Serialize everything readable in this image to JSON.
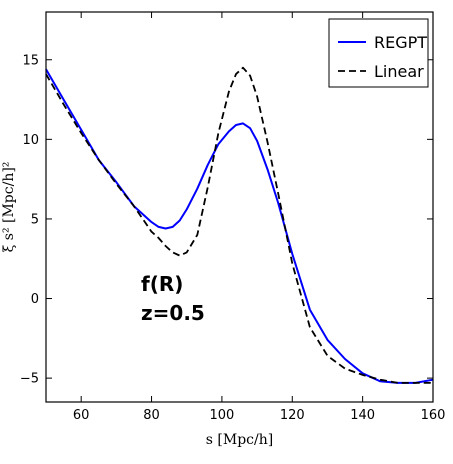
{
  "chart_data": {
    "type": "line",
    "xlabel": "s [Mpc/h]",
    "ylabel": "ξ s² [Mpc/h]²",
    "xlim": [
      50,
      160
    ],
    "ylim": [
      -6.5,
      18
    ],
    "xticks": [
      60,
      80,
      100,
      120,
      140,
      160
    ],
    "yticks": [
      -5,
      0,
      5,
      10,
      15
    ],
    "grid": false,
    "legend_position": "top-right",
    "annotations": [
      "f(R)",
      "z=0.5"
    ],
    "series": [
      {
        "name": "REGPT",
        "style": "solid",
        "color": "#0000ff",
        "x": [
          50,
          55,
          60,
          65,
          70,
          75,
          80,
          82,
          84,
          86,
          88,
          90,
          93,
          96,
          99,
          102,
          104,
          106,
          108,
          110,
          113,
          116,
          120,
          125,
          130,
          135,
          140,
          145,
          150,
          152,
          155,
          160
        ],
        "y": [
          14.4,
          12.5,
          10.6,
          8.7,
          7.3,
          5.8,
          4.8,
          4.5,
          4.4,
          4.5,
          4.9,
          5.6,
          6.9,
          8.4,
          9.7,
          10.5,
          10.9,
          11.0,
          10.7,
          9.9,
          8.1,
          6.0,
          2.8,
          -0.7,
          -2.6,
          -3.8,
          -4.7,
          -5.2,
          -5.3,
          -5.3,
          -5.3,
          -5.1
        ]
      },
      {
        "name": "Linear",
        "style": "dashed",
        "color": "#000000",
        "x": [
          50,
          55,
          60,
          65,
          70,
          75,
          80,
          82,
          84,
          86,
          88,
          90,
          93,
          96,
          99,
          102,
          104,
          106,
          108,
          110,
          113,
          116,
          120,
          125,
          130,
          135,
          140,
          145,
          150,
          152,
          155,
          160
        ],
        "y": [
          14.1,
          12.2,
          10.4,
          8.7,
          7.2,
          5.8,
          4.2,
          3.8,
          3.3,
          2.9,
          2.7,
          2.9,
          4.0,
          7.0,
          10.4,
          13.0,
          14.1,
          14.5,
          14.0,
          12.7,
          9.8,
          6.6,
          2.2,
          -1.8,
          -3.6,
          -4.4,
          -4.8,
          -5.1,
          -5.3,
          -5.3,
          -5.3,
          -5.3
        ]
      }
    ]
  }
}
